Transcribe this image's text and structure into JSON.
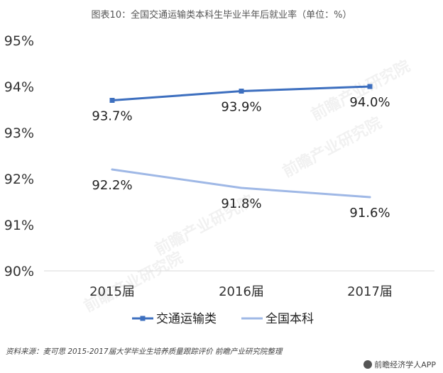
{
  "title": "图表10：全国交通运输类本科生毕业半年后就业率（单位：%）",
  "source": "资料来源：麦可思 2015-2017届大学毕业生培养质量跟踪评价 前瞻产业研究院整理",
  "brand": "前瞻经济学人APP",
  "watermark": "前瞻产业研究院",
  "chart_data": {
    "type": "line",
    "title": "图表10：全国交通运输类本科生毕业半年后就业率（单位：%）",
    "categories": [
      "2015届",
      "2016届",
      "2017届"
    ],
    "ylim": [
      90,
      95
    ],
    "yticks": [
      90,
      91,
      92,
      93,
      94,
      95
    ],
    "ytick_labels": [
      "90%",
      "91%",
      "92%",
      "93%",
      "94%",
      "95%"
    ],
    "grid": false,
    "legend_position": "bottom",
    "series": [
      {
        "name": "交通运输类",
        "values": [
          93.7,
          93.9,
          94.0
        ],
        "labels": [
          "93.7%",
          "93.9%",
          "94.0%"
        ],
        "color": "#3d6fbf",
        "marker": "square"
      },
      {
        "name": "全国本科",
        "values": [
          92.2,
          91.8,
          91.6
        ],
        "labels": [
          "92.2%",
          "91.8%",
          "91.6%"
        ],
        "color": "#9fb8e6",
        "marker": "none"
      }
    ]
  }
}
